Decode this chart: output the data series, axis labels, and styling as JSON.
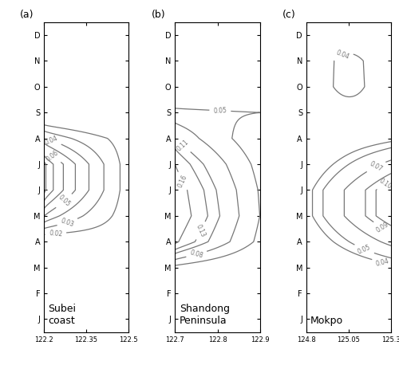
{
  "months_rev": [
    "D",
    "N",
    "O",
    "S",
    "A",
    "J",
    "J",
    "M",
    "A",
    "M",
    "F",
    "J"
  ],
  "background_color": "#ffffff",
  "contour_color_thin": "#777777",
  "contour_color_bold": "#000000",
  "panels": [
    {
      "label": "(a)",
      "title": "Subei\ncoast",
      "lon_min": 122.2,
      "lon_max": 122.5,
      "xticks": [
        122.2,
        122.35,
        122.5
      ],
      "xticklabels": [
        "122.2",
        "122.35",
        "122.5"
      ],
      "bold_level": 0.02,
      "levels": [
        0.02,
        0.03,
        0.04,
        0.05,
        0.06,
        0.07,
        0.08
      ],
      "clabel_levels": [
        0.02,
        0.03,
        0.04,
        0.05,
        0.06
      ]
    },
    {
      "label": "(b)",
      "title": "Shandong\nPeninsula",
      "lon_min": 122.7,
      "lon_max": 122.9,
      "xticks": [
        122.7,
        122.8,
        122.9
      ],
      "xticklabels": [
        "122.7",
        "122.8",
        "122.9"
      ],
      "bold_level": 0.05,
      "levels": [
        0.05,
        0.08,
        0.11,
        0.13,
        0.16
      ],
      "clabel_levels": [
        0.05,
        0.08,
        0.11,
        0.13,
        0.16
      ]
    },
    {
      "label": "(c)",
      "title": "Mokpo",
      "lon_min": 124.8,
      "lon_max": 125.3,
      "xticks": [
        124.8,
        125.05,
        125.3
      ],
      "xticklabels": [
        "124.8",
        "125.05",
        "125.3"
      ],
      "bold_level": 0.05,
      "levels": [
        0.04,
        0.05,
        0.07,
        0.09,
        0.1
      ],
      "clabel_levels": [
        0.04,
        0.05,
        0.07,
        0.09,
        0.1
      ]
    }
  ],
  "figsize": [
    5.0,
    4.63
  ],
  "dpi": 100,
  "fontsize_tick": 7,
  "fontsize_label": 9,
  "fontsize_clabel": 5.5,
  "fontsize_title": 9
}
